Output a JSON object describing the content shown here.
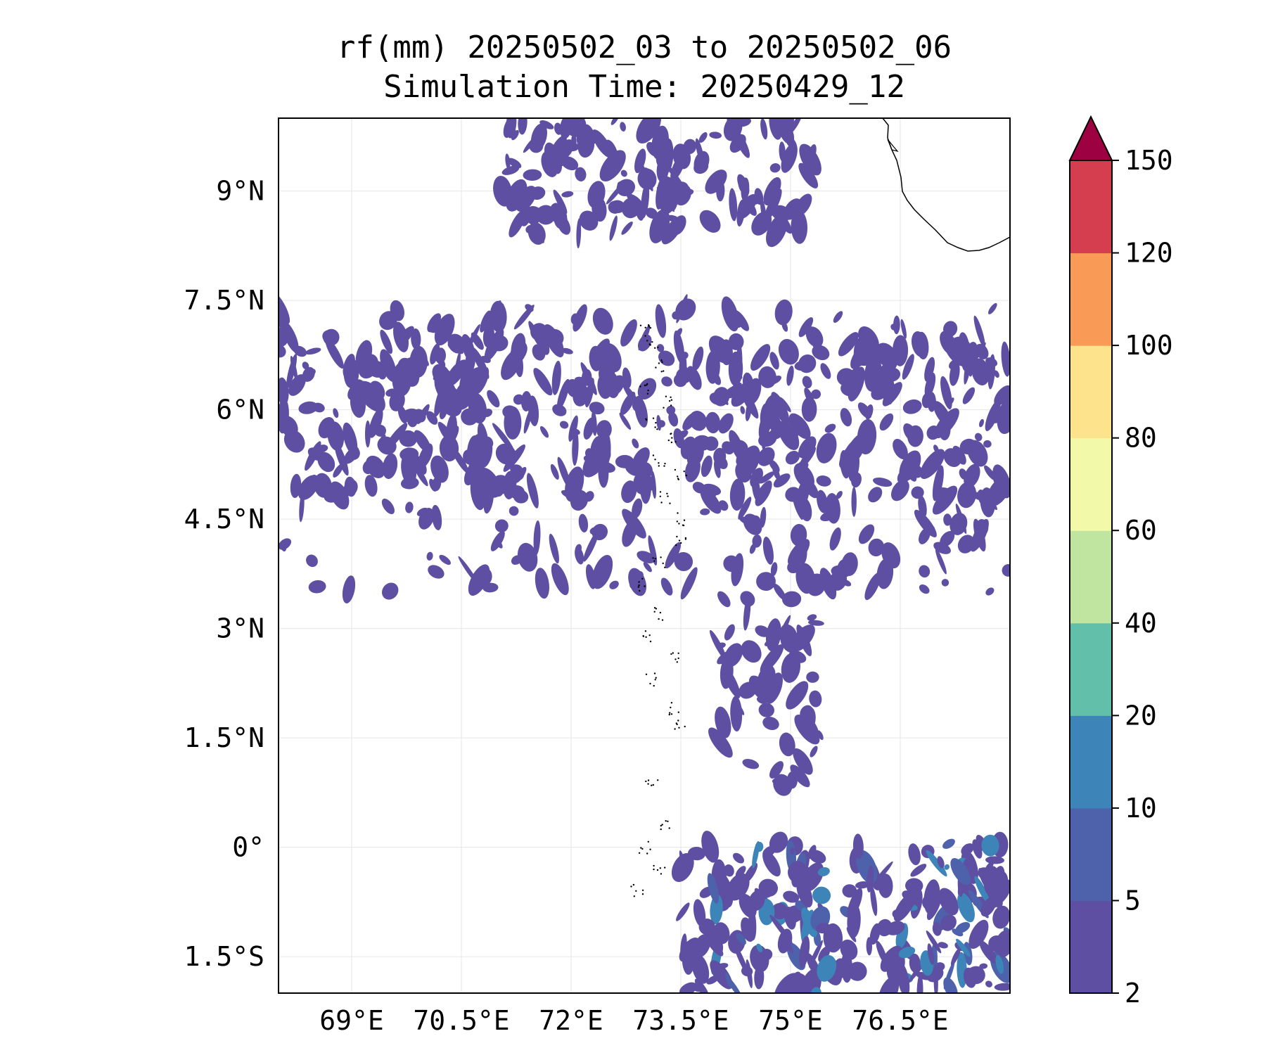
{
  "title": {
    "line1": "rf(mm) 20250502_03 to 20250502_06",
    "line2": "Simulation Time: 20250429_12"
  },
  "map": {
    "projection": "PlateCarree",
    "extent": {
      "lon_min": 68.0,
      "lon_max": 78.0,
      "lat_min": -2.0,
      "lat_max": 10.0
    },
    "lon_ticks": [
      {
        "value": 69.0,
        "label": "69°E"
      },
      {
        "value": 70.5,
        "label": "70.5°E"
      },
      {
        "value": 72.0,
        "label": "72°E"
      },
      {
        "value": 73.5,
        "label": "73.5°E"
      },
      {
        "value": 75.0,
        "label": "75°E"
      },
      {
        "value": 76.5,
        "label": "76.5°E"
      }
    ],
    "lat_ticks": [
      {
        "value": 9.0,
        "label": "9°N"
      },
      {
        "value": 7.5,
        "label": "7.5°N"
      },
      {
        "value": 6.0,
        "label": "6°N"
      },
      {
        "value": 4.5,
        "label": "4.5°N"
      },
      {
        "value": 3.0,
        "label": "3°N"
      },
      {
        "value": 1.5,
        "label": "1.5°N"
      },
      {
        "value": 0.0,
        "label": "0°"
      },
      {
        "value": -1.5,
        "label": "1.5°S"
      }
    ],
    "gridlines": true,
    "rainfall_regions": [
      {
        "name": "north",
        "lon_range": [
          71.0,
          75.3
        ],
        "lat_range": [
          8.4,
          10.0
        ],
        "level_mm": "2-5"
      },
      {
        "name": "central",
        "lon_range": [
          68.0,
          78.0
        ],
        "lat_range": [
          3.5,
          7.4
        ],
        "level_mm": "2-5"
      },
      {
        "name": "central-south-tail",
        "lon_range": [
          74.0,
          75.5
        ],
        "lat_range": [
          0.8,
          3.5
        ],
        "level_mm": "2-5"
      },
      {
        "name": "south-east",
        "lon_range": [
          73.5,
          78.0
        ],
        "lat_range": [
          -2.0,
          0.1
        ],
        "level_mm": "2-10"
      }
    ],
    "coastline": "southern India tip, top-right corner"
  },
  "colorbar": {
    "levels": [
      2,
      5,
      10,
      20,
      40,
      60,
      80,
      100,
      120,
      150
    ],
    "labels": [
      "2",
      "5",
      "10",
      "20",
      "40",
      "60",
      "80",
      "100",
      "120",
      "150"
    ],
    "colors": [
      "#5e4fa2",
      "#4e62ab",
      "#3d84b8",
      "#62bfaa",
      "#bfe5a0",
      "#f2faaa",
      "#fde38b",
      "#f99a57",
      "#d53e4f"
    ],
    "extend": "max",
    "extend_color": "#9e0142"
  },
  "colors": {
    "rain_low": "#5e4fa2",
    "rain_mid": "#4e62ab",
    "rain_hi": "#3d84b8",
    "coastline": "#000000",
    "grid": "#e6e6e6"
  }
}
